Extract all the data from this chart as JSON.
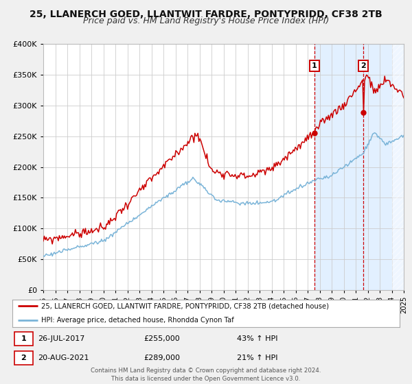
{
  "title": "25, LLANERCH GOED, LLANTWIT FARDRE, PONTYPRIDD, CF38 2TB",
  "subtitle": "Price paid vs. HM Land Registry's House Price Index (HPI)",
  "legend_line1": "25, LLANERCH GOED, LLANTWIT FARDRE, PONTYPRIDD, CF38 2TB (detached house)",
  "legend_line2": "HPI: Average price, detached house, Rhondda Cynon Taf",
  "marker1_date": "26-JUL-2017",
  "marker1_price": "£255,000",
  "marker1_hpi": "43% ↑ HPI",
  "marker1_x": 2017.57,
  "marker1_y": 255000,
  "marker2_date": "20-AUG-2021",
  "marker2_price": "£289,000",
  "marker2_hpi": "21% ↑ HPI",
  "marker2_x": 2021.64,
  "marker2_y": 289000,
  "xmin": 1995,
  "xmax": 2025,
  "ymin": 0,
  "ymax": 400000,
  "yticks": [
    0,
    50000,
    100000,
    150000,
    200000,
    250000,
    300000,
    350000,
    400000
  ],
  "red_color": "#cc0000",
  "blue_color": "#7ab4d8",
  "background_color": "#f0f0f0",
  "plot_bg_color": "#ffffff",
  "shade_bg_color": "#ddeeff",
  "hatch_color": "#c8c8c8",
  "footer_text": "Contains HM Land Registry data © Crown copyright and database right 2024.\nThis data is licensed under the Open Government Licence v3.0.",
  "title_fontsize": 10,
  "subtitle_fontsize": 9
}
